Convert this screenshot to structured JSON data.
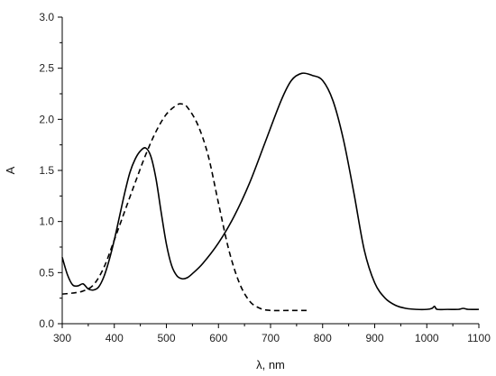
{
  "chart_data": {
    "type": "line",
    "xlabel": "λ, nm",
    "ylabel": "A",
    "xlim": [
      300,
      1100
    ],
    "ylim": [
      0,
      3.0
    ],
    "x_ticks": [
      300,
      400,
      500,
      600,
      700,
      800,
      900,
      1000,
      1100
    ],
    "y_ticks": [
      0.0,
      0.5,
      1.0,
      1.5,
      2.0,
      2.5,
      3.0
    ],
    "x_tick_labels": [
      "300",
      "400",
      "500",
      "600",
      "700",
      "800",
      "900",
      "1000",
      "1100"
    ],
    "y_tick_labels": [
      "0.0",
      "0.5",
      "1.0",
      "1.5",
      "2.0",
      "2.5",
      "3.0"
    ],
    "grid": false,
    "series": [
      {
        "style": "solid",
        "points": [
          [
            300,
            0.65
          ],
          [
            310,
            0.48
          ],
          [
            320,
            0.38
          ],
          [
            330,
            0.37
          ],
          [
            340,
            0.39
          ],
          [
            350,
            0.34
          ],
          [
            360,
            0.33
          ],
          [
            370,
            0.36
          ],
          [
            380,
            0.46
          ],
          [
            390,
            0.62
          ],
          [
            400,
            0.82
          ],
          [
            410,
            1.05
          ],
          [
            420,
            1.28
          ],
          [
            430,
            1.48
          ],
          [
            440,
            1.61
          ],
          [
            450,
            1.69
          ],
          [
            460,
            1.72
          ],
          [
            470,
            1.64
          ],
          [
            480,
            1.42
          ],
          [
            490,
            1.09
          ],
          [
            500,
            0.78
          ],
          [
            510,
            0.57
          ],
          [
            520,
            0.47
          ],
          [
            530,
            0.44
          ],
          [
            540,
            0.45
          ],
          [
            550,
            0.49
          ],
          [
            570,
            0.59
          ],
          [
            600,
            0.79
          ],
          [
            630,
            1.05
          ],
          [
            660,
            1.38
          ],
          [
            690,
            1.78
          ],
          [
            720,
            2.18
          ],
          [
            740,
            2.38
          ],
          [
            760,
            2.45
          ],
          [
            780,
            2.43
          ],
          [
            800,
            2.38
          ],
          [
            820,
            2.18
          ],
          [
            840,
            1.8
          ],
          [
            860,
            1.28
          ],
          [
            880,
            0.72
          ],
          [
            900,
            0.4
          ],
          [
            920,
            0.25
          ],
          [
            940,
            0.18
          ],
          [
            960,
            0.15
          ],
          [
            980,
            0.14
          ],
          [
            1000,
            0.14
          ],
          [
            1010,
            0.15
          ],
          [
            1015,
            0.17
          ],
          [
            1020,
            0.14
          ],
          [
            1040,
            0.14
          ],
          [
            1060,
            0.14
          ],
          [
            1070,
            0.15
          ],
          [
            1080,
            0.14
          ],
          [
            1100,
            0.14
          ]
        ]
      },
      {
        "style": "dashed",
        "points": [
          [
            300,
            0.29
          ],
          [
            320,
            0.3
          ],
          [
            340,
            0.32
          ],
          [
            360,
            0.38
          ],
          [
            380,
            0.55
          ],
          [
            400,
            0.82
          ],
          [
            420,
            1.1
          ],
          [
            440,
            1.38
          ],
          [
            460,
            1.65
          ],
          [
            480,
            1.88
          ],
          [
            500,
            2.05
          ],
          [
            520,
            2.14
          ],
          [
            530,
            2.15
          ],
          [
            540,
            2.12
          ],
          [
            560,
            1.95
          ],
          [
            580,
            1.65
          ],
          [
            600,
            1.18
          ],
          [
            620,
            0.72
          ],
          [
            640,
            0.4
          ],
          [
            660,
            0.22
          ],
          [
            680,
            0.15
          ],
          [
            700,
            0.13
          ],
          [
            740,
            0.13
          ],
          [
            775,
            0.13
          ]
        ]
      }
    ]
  }
}
